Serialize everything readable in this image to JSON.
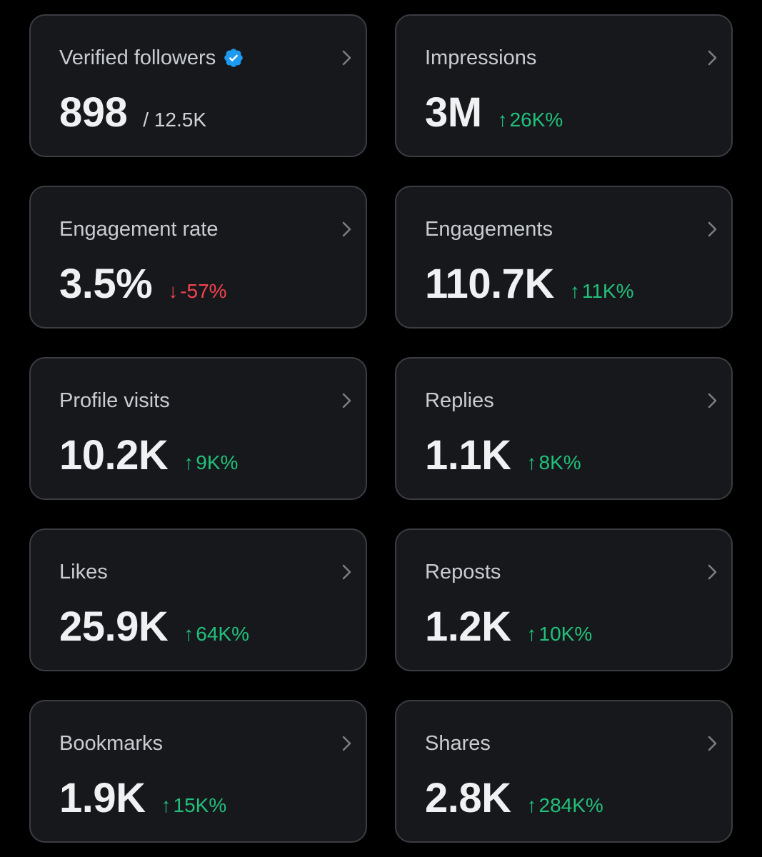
{
  "colors": {
    "background": "#000000",
    "card_background": "#16181c",
    "card_border": "#3a3d42",
    "positive": "#22c07a",
    "negative": "#f4434f",
    "verified": "#1d9bf0"
  },
  "cards": [
    {
      "title": "Verified followers",
      "value": "898",
      "sub": "/ 12.5K",
      "arrow": "",
      "change": "",
      "verified_icon": "verified-badge-icon"
    },
    {
      "title": "Impressions",
      "value": "3M",
      "sub": "",
      "arrow": "↑",
      "change": "26K%",
      "direction": "up"
    },
    {
      "title": "Engagement rate",
      "value": "3.5%",
      "sub": "",
      "arrow": "↓",
      "change": "-57%",
      "direction": "down"
    },
    {
      "title": "Engagements",
      "value": "110.7K",
      "sub": "",
      "arrow": "↑",
      "change": "11K%",
      "direction": "up"
    },
    {
      "title": "Profile visits",
      "value": "10.2K",
      "sub": "",
      "arrow": "↑",
      "change": "9K%",
      "direction": "up"
    },
    {
      "title": "Replies",
      "value": "1.1K",
      "sub": "",
      "arrow": "↑",
      "change": "8K%",
      "direction": "up"
    },
    {
      "title": "Likes",
      "value": "25.9K",
      "sub": "",
      "arrow": "↑",
      "change": "64K%",
      "direction": "up"
    },
    {
      "title": "Reposts",
      "value": "1.2K",
      "sub": "",
      "arrow": "↑",
      "change": "10K%",
      "direction": "up"
    },
    {
      "title": "Bookmarks",
      "value": "1.9K",
      "sub": "",
      "arrow": "↑",
      "change": "15K%",
      "direction": "up"
    },
    {
      "title": "Shares",
      "value": "2.8K",
      "sub": "",
      "arrow": "↑",
      "change": "284K%",
      "direction": "up"
    }
  ]
}
